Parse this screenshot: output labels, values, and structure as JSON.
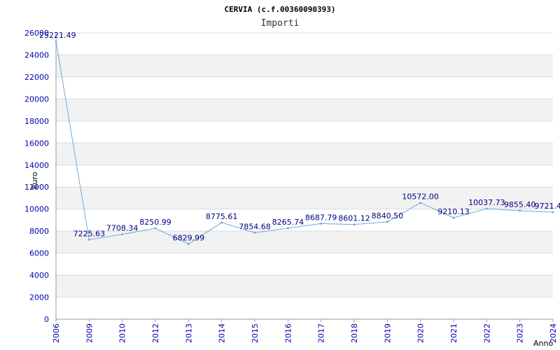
{
  "chart_data": {
    "type": "line",
    "title": "CERVIA (c.f.00360090393)",
    "subtitle": "Importi",
    "ylabel": "Euro",
    "xlabel": "Anno",
    "ylim": [
      0,
      26000
    ],
    "ytick_step": 2000,
    "grid": true,
    "line_color": "#6fa8dc",
    "band_color": "#f2f2f2",
    "categories": [
      "2006",
      "2009",
      "2010",
      "2012",
      "2013",
      "2014",
      "2015",
      "2016",
      "2017",
      "2018",
      "2019",
      "2020",
      "2021",
      "2022",
      "2023",
      "2024"
    ],
    "values": [
      25221.49,
      7225.63,
      7708.34,
      8250.99,
      6829.99,
      8775.61,
      7854.68,
      8265.74,
      8687.79,
      8601.12,
      8840.5,
      10572.0,
      9210.13,
      10037.73,
      9855.4,
      9721.4
    ],
    "labels": [
      "25221.49",
      "7225.63",
      "7708.34",
      "8250.99",
      "6829.99",
      "8775.61",
      "7854.68",
      "8265.74",
      "8687.79",
      "8601.12",
      "8840.50",
      "10572.00",
      "9210.13",
      "10037.73",
      "9855.40",
      "9721.4"
    ]
  }
}
